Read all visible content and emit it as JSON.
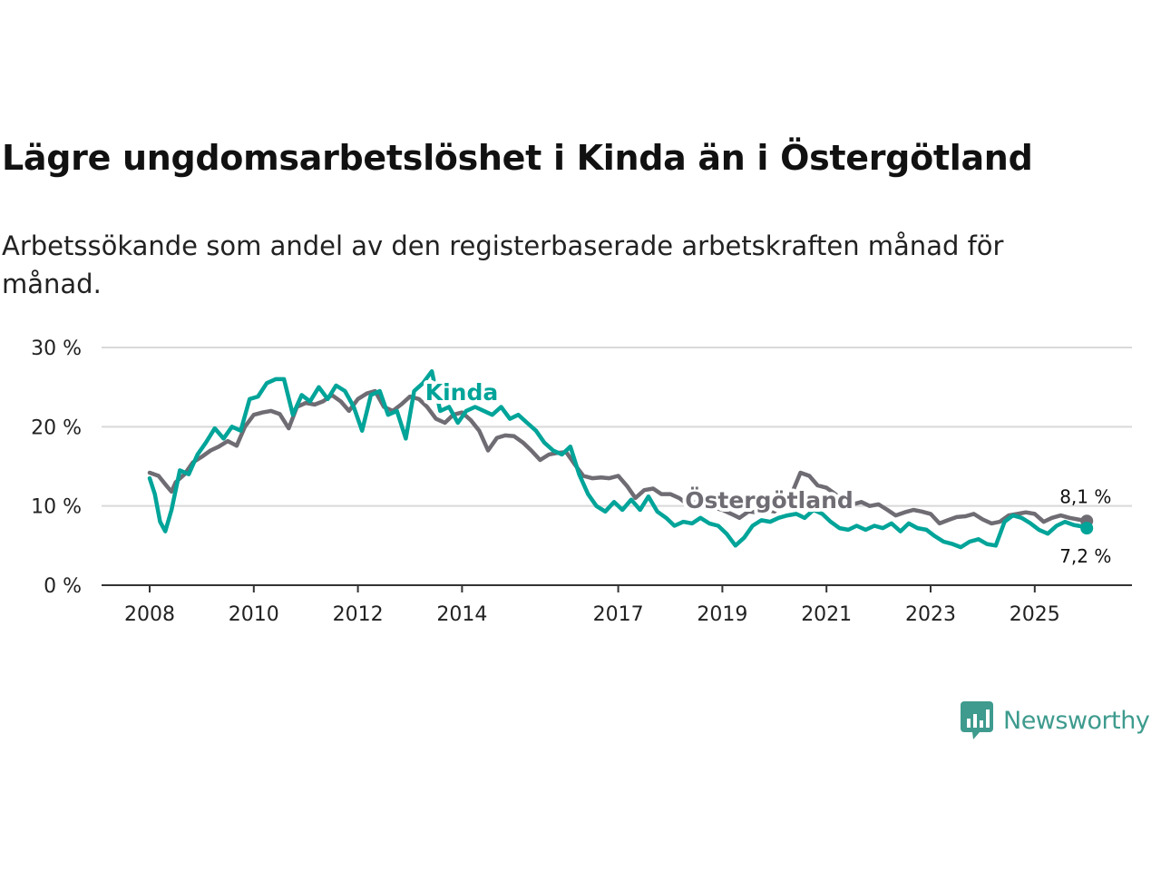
{
  "title": "Lägre ungdomsarbetslöshet i Kinda än i Östergötland",
  "subtitle": "Arbetssökande som andel av den registerbaserade arbetskraften månad för månad.",
  "brand": "Newsworthy",
  "colors": {
    "kinda": "#00a499",
    "ostergotland": "#6f6c73",
    "grid": "#d9d9d9",
    "axis": "#333333",
    "brand": "#3e9b8e"
  },
  "chart_data": {
    "type": "line",
    "title": "Lägre ungdomsarbetslöshet i Kinda än i Östergötland",
    "ylim": [
      0,
      30
    ],
    "xlim": [
      2008.0,
      2026.25
    ],
    "yticks": [
      0,
      10,
      20,
      30
    ],
    "ytick_labels": [
      "0 %",
      "10 %",
      "20 %",
      "30 %"
    ],
    "xticks": [
      2008,
      2010,
      2012,
      2014,
      2017,
      2019,
      2021,
      2023,
      2025
    ],
    "grid": true,
    "series": [
      {
        "name": "Östergötland",
        "color": "#6f6c73",
        "end_label": "8,1 %",
        "points": [
          [
            2008.0,
            14.2
          ],
          [
            2008.17,
            13.8
          ],
          [
            2008.33,
            12.5
          ],
          [
            2008.42,
            11.8
          ],
          [
            2008.5,
            13.0
          ],
          [
            2008.67,
            14.0
          ],
          [
            2008.83,
            15.5
          ],
          [
            2009.0,
            16.2
          ],
          [
            2009.17,
            17.0
          ],
          [
            2009.33,
            17.5
          ],
          [
            2009.5,
            18.2
          ],
          [
            2009.67,
            17.6
          ],
          [
            2009.83,
            20.0
          ],
          [
            2010.0,
            21.5
          ],
          [
            2010.17,
            21.8
          ],
          [
            2010.33,
            22.0
          ],
          [
            2010.5,
            21.6
          ],
          [
            2010.67,
            19.8
          ],
          [
            2010.83,
            22.5
          ],
          [
            2011.0,
            23.0
          ],
          [
            2011.17,
            22.8
          ],
          [
            2011.33,
            23.2
          ],
          [
            2011.5,
            24.0
          ],
          [
            2011.67,
            23.2
          ],
          [
            2011.83,
            22.0
          ],
          [
            2012.0,
            23.5
          ],
          [
            2012.17,
            24.2
          ],
          [
            2012.33,
            24.5
          ],
          [
            2012.5,
            22.5
          ],
          [
            2012.67,
            22.0
          ],
          [
            2012.83,
            22.8
          ],
          [
            2013.0,
            23.8
          ],
          [
            2013.17,
            23.5
          ],
          [
            2013.33,
            22.5
          ],
          [
            2013.5,
            21.0
          ],
          [
            2013.67,
            20.5
          ],
          [
            2013.83,
            21.5
          ],
          [
            2014.0,
            21.8
          ],
          [
            2014.17,
            20.8
          ],
          [
            2014.33,
            19.5
          ],
          [
            2014.5,
            17.0
          ],
          [
            2014.67,
            18.6
          ],
          [
            2014.83,
            18.9
          ],
          [
            2015.0,
            18.8
          ],
          [
            2015.17,
            18.0
          ],
          [
            2015.33,
            17.0
          ],
          [
            2015.5,
            15.8
          ],
          [
            2015.67,
            16.5
          ],
          [
            2015.83,
            16.7
          ],
          [
            2016.0,
            16.8
          ],
          [
            2016.17,
            15.2
          ],
          [
            2016.33,
            13.8
          ],
          [
            2016.5,
            13.5
          ],
          [
            2016.67,
            13.6
          ],
          [
            2016.83,
            13.5
          ],
          [
            2017.0,
            13.8
          ],
          [
            2017.17,
            12.5
          ],
          [
            2017.33,
            11.0
          ],
          [
            2017.5,
            12.0
          ],
          [
            2017.67,
            12.2
          ],
          [
            2017.83,
            11.5
          ],
          [
            2018.0,
            11.5
          ],
          [
            2018.17,
            11.0
          ],
          [
            2018.33,
            10.2
          ],
          [
            2018.5,
            10.5
          ],
          [
            2018.67,
            10.0
          ],
          [
            2018.83,
            9.8
          ],
          [
            2019.0,
            9.5
          ],
          [
            2019.17,
            9.0
          ],
          [
            2019.33,
            8.5
          ],
          [
            2019.5,
            9.3
          ],
          [
            2019.67,
            9.2
          ],
          [
            2019.83,
            9.5
          ],
          [
            2020.0,
            9.3
          ],
          [
            2020.17,
            10.5
          ],
          [
            2020.33,
            11.5
          ],
          [
            2020.5,
            14.2
          ],
          [
            2020.67,
            13.8
          ],
          [
            2020.83,
            12.6
          ],
          [
            2021.0,
            12.3
          ],
          [
            2021.17,
            11.5
          ],
          [
            2021.33,
            10.5
          ],
          [
            2021.5,
            10.2
          ],
          [
            2021.67,
            10.5
          ],
          [
            2021.83,
            10.0
          ],
          [
            2022.0,
            10.2
          ],
          [
            2022.17,
            9.5
          ],
          [
            2022.33,
            8.8
          ],
          [
            2022.5,
            9.2
          ],
          [
            2022.67,
            9.5
          ],
          [
            2022.83,
            9.3
          ],
          [
            2023.0,
            9.0
          ],
          [
            2023.17,
            7.8
          ],
          [
            2023.33,
            8.2
          ],
          [
            2023.5,
            8.6
          ],
          [
            2023.67,
            8.7
          ],
          [
            2023.83,
            9.0
          ],
          [
            2024.0,
            8.3
          ],
          [
            2024.17,
            7.8
          ],
          [
            2024.33,
            8.0
          ],
          [
            2024.5,
            8.8
          ],
          [
            2024.67,
            9.0
          ],
          [
            2024.83,
            9.2
          ],
          [
            2025.0,
            9.0
          ],
          [
            2025.17,
            8.0
          ],
          [
            2025.33,
            8.5
          ],
          [
            2025.5,
            8.8
          ],
          [
            2025.67,
            8.5
          ],
          [
            2025.83,
            8.3
          ],
          [
            2026.0,
            8.1
          ]
        ]
      },
      {
        "name": "Kinda",
        "color": "#00a499",
        "end_label": "7,2 %",
        "points": [
          [
            2008.0,
            13.5
          ],
          [
            2008.1,
            11.5
          ],
          [
            2008.2,
            8.0
          ],
          [
            2008.3,
            6.8
          ],
          [
            2008.42,
            9.5
          ],
          [
            2008.58,
            14.5
          ],
          [
            2008.75,
            14.0
          ],
          [
            2008.92,
            16.5
          ],
          [
            2009.08,
            18.0
          ],
          [
            2009.25,
            19.8
          ],
          [
            2009.42,
            18.5
          ],
          [
            2009.58,
            20.0
          ],
          [
            2009.75,
            19.5
          ],
          [
            2009.92,
            23.5
          ],
          [
            2010.08,
            23.8
          ],
          [
            2010.25,
            25.5
          ],
          [
            2010.42,
            26.0
          ],
          [
            2010.58,
            26.0
          ],
          [
            2010.75,
            21.5
          ],
          [
            2010.92,
            24.0
          ],
          [
            2011.08,
            23.2
          ],
          [
            2011.25,
            25.0
          ],
          [
            2011.42,
            23.5
          ],
          [
            2011.58,
            25.2
          ],
          [
            2011.75,
            24.5
          ],
          [
            2011.92,
            22.5
          ],
          [
            2012.08,
            19.5
          ],
          [
            2012.25,
            24.0
          ],
          [
            2012.42,
            24.5
          ],
          [
            2012.58,
            21.5
          ],
          [
            2012.75,
            22.0
          ],
          [
            2012.92,
            18.5
          ],
          [
            2013.08,
            24.5
          ],
          [
            2013.25,
            25.5
          ],
          [
            2013.42,
            27.0
          ],
          [
            2013.58,
            22.0
          ],
          [
            2013.75,
            22.5
          ],
          [
            2013.92,
            20.5
          ],
          [
            2014.08,
            22.0
          ],
          [
            2014.25,
            22.5
          ],
          [
            2014.42,
            22.0
          ],
          [
            2014.58,
            21.5
          ],
          [
            2014.75,
            22.5
          ],
          [
            2014.92,
            21.0
          ],
          [
            2015.08,
            21.5
          ],
          [
            2015.25,
            20.5
          ],
          [
            2015.42,
            19.5
          ],
          [
            2015.58,
            18.0
          ],
          [
            2015.75,
            17.0
          ],
          [
            2015.92,
            16.5
          ],
          [
            2016.08,
            17.5
          ],
          [
            2016.25,
            14.0
          ],
          [
            2016.42,
            11.5
          ],
          [
            2016.58,
            10.0
          ],
          [
            2016.75,
            9.3
          ],
          [
            2016.92,
            10.5
          ],
          [
            2017.08,
            9.5
          ],
          [
            2017.25,
            10.8
          ],
          [
            2017.42,
            9.5
          ],
          [
            2017.58,
            11.2
          ],
          [
            2017.75,
            9.3
          ],
          [
            2017.92,
            8.5
          ],
          [
            2018.08,
            7.5
          ],
          [
            2018.25,
            8.0
          ],
          [
            2018.42,
            7.8
          ],
          [
            2018.58,
            8.5
          ],
          [
            2018.75,
            7.8
          ],
          [
            2018.92,
            7.5
          ],
          [
            2019.08,
            6.5
          ],
          [
            2019.25,
            5.0
          ],
          [
            2019.42,
            6.0
          ],
          [
            2019.58,
            7.5
          ],
          [
            2019.75,
            8.2
          ],
          [
            2019.92,
            8.0
          ],
          [
            2020.08,
            8.5
          ],
          [
            2020.25,
            8.8
          ],
          [
            2020.42,
            9.0
          ],
          [
            2020.58,
            8.5
          ],
          [
            2020.75,
            9.5
          ],
          [
            2020.92,
            9.0
          ],
          [
            2021.08,
            8.0
          ],
          [
            2021.25,
            7.2
          ],
          [
            2021.42,
            7.0
          ],
          [
            2021.58,
            7.5
          ],
          [
            2021.75,
            7.0
          ],
          [
            2021.92,
            7.5
          ],
          [
            2022.08,
            7.2
          ],
          [
            2022.25,
            7.8
          ],
          [
            2022.42,
            6.8
          ],
          [
            2022.58,
            7.8
          ],
          [
            2022.75,
            7.2
          ],
          [
            2022.92,
            7.0
          ],
          [
            2023.08,
            6.2
          ],
          [
            2023.25,
            5.5
          ],
          [
            2023.42,
            5.2
          ],
          [
            2023.58,
            4.8
          ],
          [
            2023.75,
            5.5
          ],
          [
            2023.92,
            5.8
          ],
          [
            2024.08,
            5.2
          ],
          [
            2024.25,
            5.0
          ],
          [
            2024.42,
            8.0
          ],
          [
            2024.58,
            8.8
          ],
          [
            2024.75,
            8.5
          ],
          [
            2024.92,
            7.8
          ],
          [
            2025.08,
            7.0
          ],
          [
            2025.25,
            6.5
          ],
          [
            2025.42,
            7.5
          ],
          [
            2025.58,
            8.0
          ],
          [
            2025.75,
            7.6
          ],
          [
            2025.92,
            7.4
          ],
          [
            2026.0,
            7.2
          ]
        ]
      }
    ]
  }
}
